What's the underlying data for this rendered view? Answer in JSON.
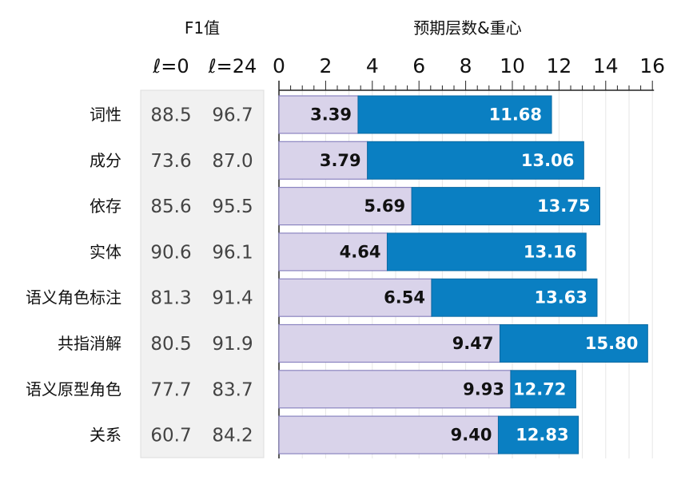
{
  "headers": {
    "f1_title": "F1值",
    "col_l0": "ℓ=0",
    "col_l24": "ℓ=24",
    "chart_title": "预期层数&重心"
  },
  "chart_data": {
    "type": "bar",
    "title": "预期层数&重心",
    "categories": [
      "词性",
      "成分",
      "依存",
      "实体",
      "语义角色标注",
      "共指消解",
      "语义原型角色",
      "关系"
    ],
    "series": [
      {
        "values": [
          3.39,
          3.79,
          5.69,
          4.64,
          6.54,
          9.47,
          9.93,
          9.4
        ],
        "color": "#d9d3ea"
      },
      {
        "values": [
          11.68,
          13.06,
          13.75,
          13.16,
          13.63,
          15.8,
          12.72,
          12.83
        ],
        "color": "#0a7fc2"
      }
    ],
    "value_labels": [
      [
        "3.39",
        "11.68"
      ],
      [
        "3.79",
        "13.06"
      ],
      [
        "5.69",
        "13.75"
      ],
      [
        "4.64",
        "13.16"
      ],
      [
        "6.54",
        "13.63"
      ],
      [
        "9.47",
        "15.80"
      ],
      [
        "9.93",
        "12.72"
      ],
      [
        "9.40",
        "12.83"
      ]
    ],
    "xlim": [
      0,
      16
    ],
    "xticks": [
      0,
      2,
      4,
      6,
      8,
      10,
      12,
      14,
      16
    ],
    "xtick_labels": [
      "0",
      "2",
      "4",
      "6",
      "8",
      "10",
      "12",
      "14",
      "16"
    ],
    "grid": true
  },
  "f1_table": {
    "rows": [
      [
        "88.5",
        "96.7"
      ],
      [
        "73.6",
        "87.0"
      ],
      [
        "85.6",
        "95.5"
      ],
      [
        "90.6",
        "96.1"
      ],
      [
        "81.3",
        "91.4"
      ],
      [
        "80.5",
        "91.9"
      ],
      [
        "77.7",
        "83.7"
      ],
      [
        "60.7",
        "84.2"
      ]
    ]
  }
}
